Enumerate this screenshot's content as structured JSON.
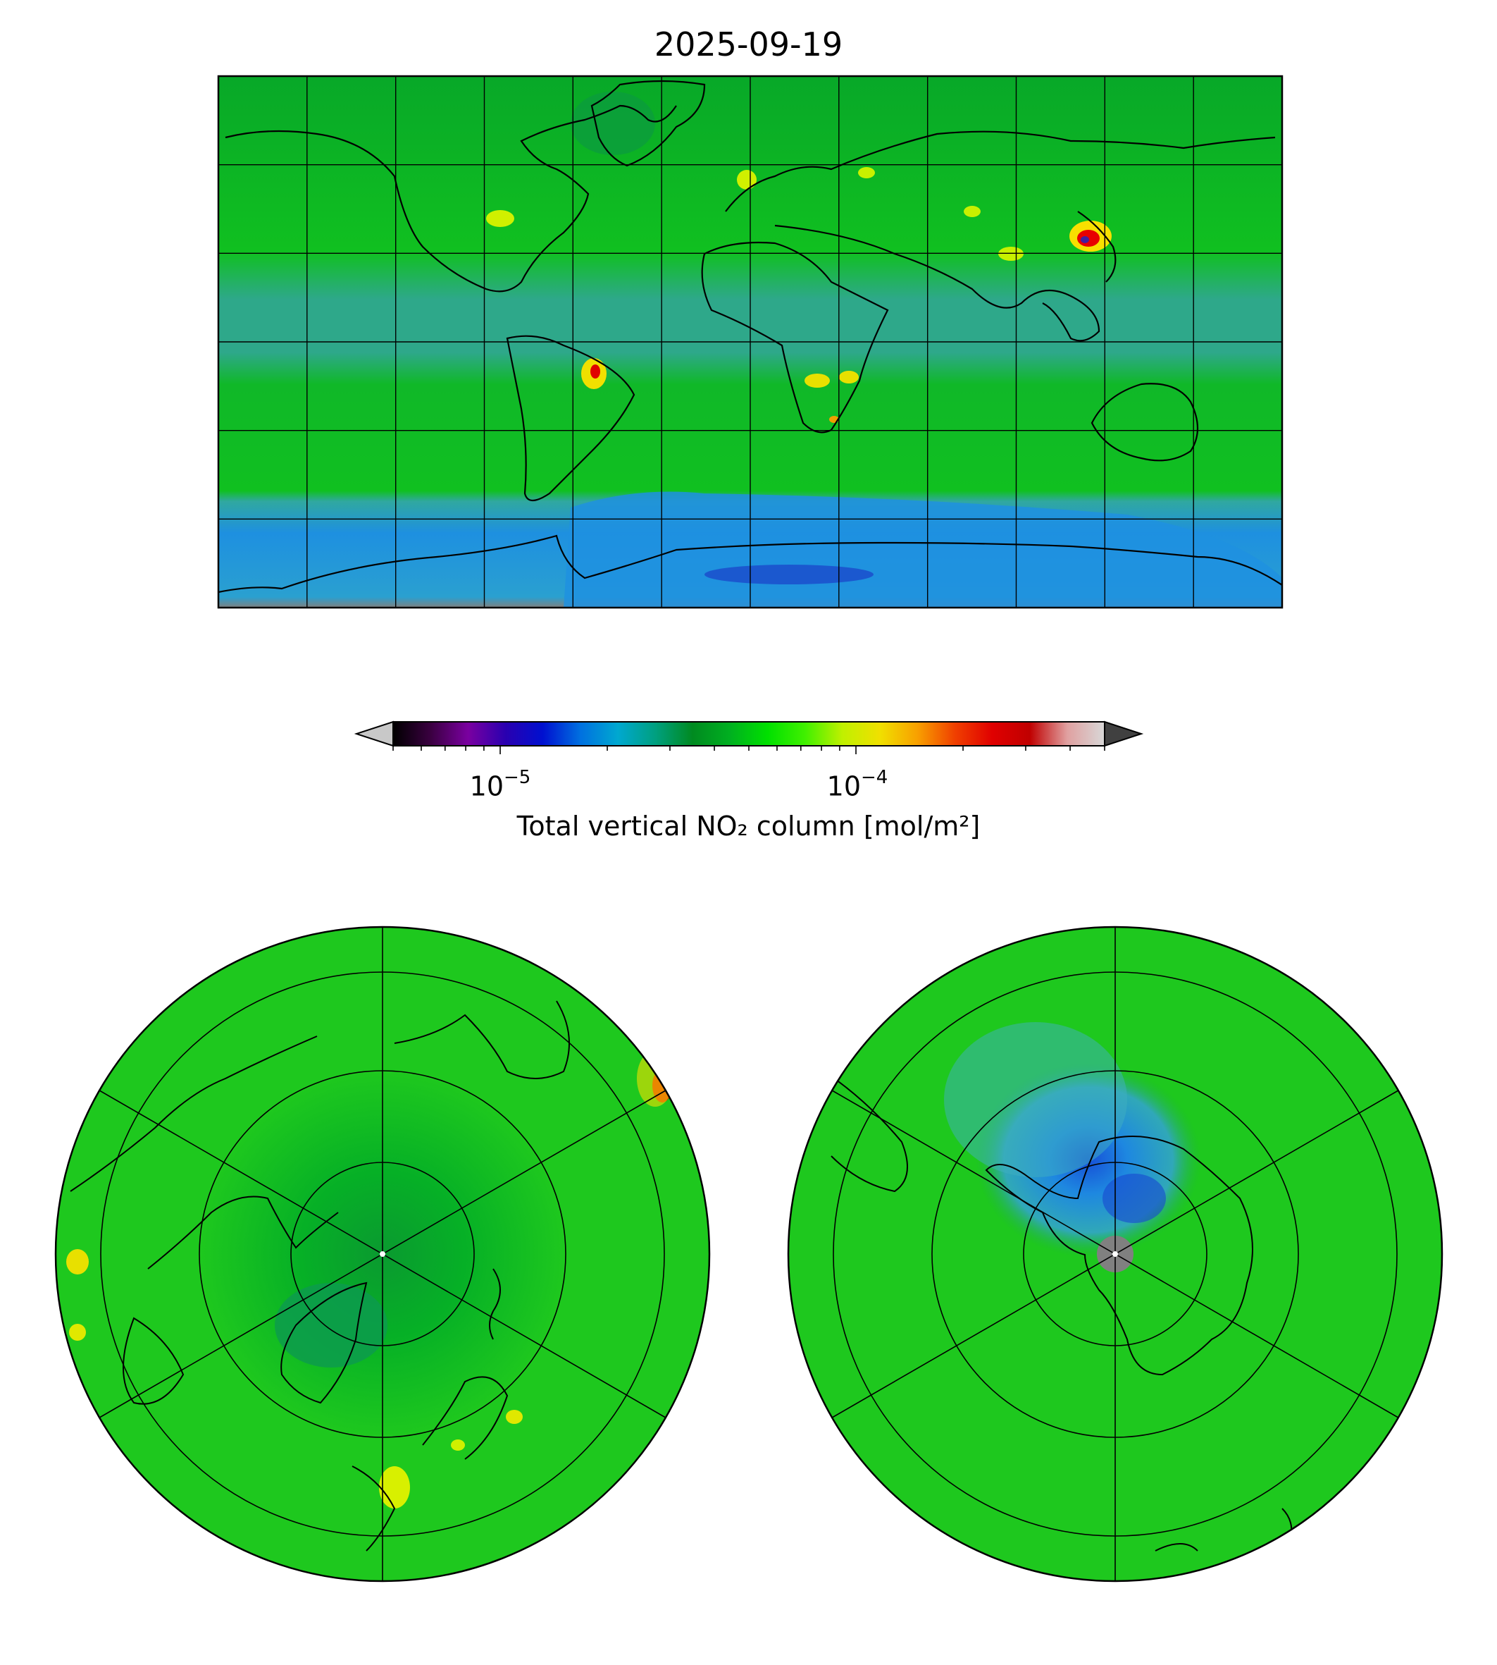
{
  "title": "2025-09-19",
  "colorbar": {
    "label": "Total vertical NO₂ column [mol/m²]",
    "scale": "log",
    "range": [
      5e-06,
      0.0005
    ],
    "extend": "both",
    "ticks": [
      {
        "value": 1e-05,
        "base": "10",
        "exp": "−5"
      },
      {
        "value": 0.0001,
        "base": "10",
        "exp": "−4"
      }
    ],
    "stops": [
      "#000000",
      "#3a0040",
      "#7a00a0",
      "#2a00b0",
      "#0010d0",
      "#0070e0",
      "#00a8d0",
      "#00a080",
      "#008a20",
      "#00b020",
      "#00e000",
      "#40f000",
      "#c0f000",
      "#f0e000",
      "#f8a000",
      "#f04000",
      "#e00000",
      "#c00000",
      "#e0a0a0",
      "#d8d8d8"
    ],
    "under_color": "#c8c8c8",
    "over_color": "#404040"
  },
  "maps": {
    "world": {
      "projection": "PlateCarree",
      "lon_range": [
        -180,
        180
      ],
      "lat_range": [
        -90,
        90
      ],
      "grid_lon_step": 30,
      "grid_lat_step": 30
    },
    "north_polar": {
      "projection": "NorthPolarStereo",
      "grid_lat": [
        80,
        60,
        40,
        20
      ],
      "grid_lon_step": 60
    },
    "south_polar": {
      "projection": "SouthPolarStereo",
      "grid_lat": [
        -80,
        -60,
        -40,
        -20
      ],
      "grid_lon_step": 60
    }
  },
  "colors": {
    "background": "#00c81e",
    "ocean_tropics": "#2aa88a",
    "antarctic_low": "#1e90e0",
    "missing": "#808080"
  }
}
